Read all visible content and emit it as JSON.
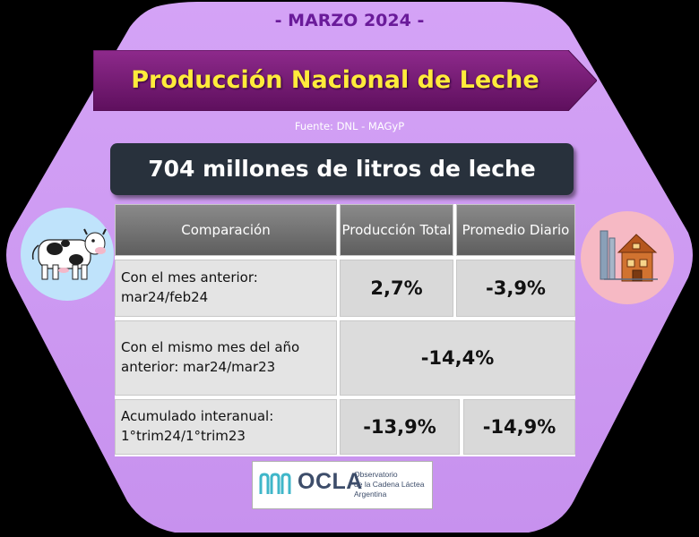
{
  "header": {
    "date": "- MARZO 2024 -",
    "title": "Producción Nacional de Leche",
    "source": "Fuente: DNL - MAGyP"
  },
  "total": "704 millones de litros de leche",
  "table": {
    "headers": [
      "Comparación",
      "Producción Total",
      "Promedio Diario"
    ],
    "rows": [
      {
        "label": "Con el mes anterior: mar24/feb24",
        "total": "2,7%",
        "daily": "-3,9%"
      },
      {
        "label": "Con el mismo mes del año anterior: mar24/mar23",
        "combined": "-14,4%"
      },
      {
        "label": "Acumulado interanual: 1°trim24/1°trim23",
        "total": "-13,9%",
        "daily": "-14,9%"
      }
    ]
  },
  "logo": {
    "name": "OCLA",
    "line1": "Observatorio",
    "line2": "de la Cadena Láctea",
    "line3": "Argentina"
  },
  "icons": [
    "cow-icon",
    "barn-icon"
  ],
  "colors": {
    "hexagon": "#cf9bf3",
    "banner": "#7b1a7a",
    "title_text": "#ffeb3b",
    "date_text": "#6a1b9a",
    "total_box": "#28313c"
  }
}
